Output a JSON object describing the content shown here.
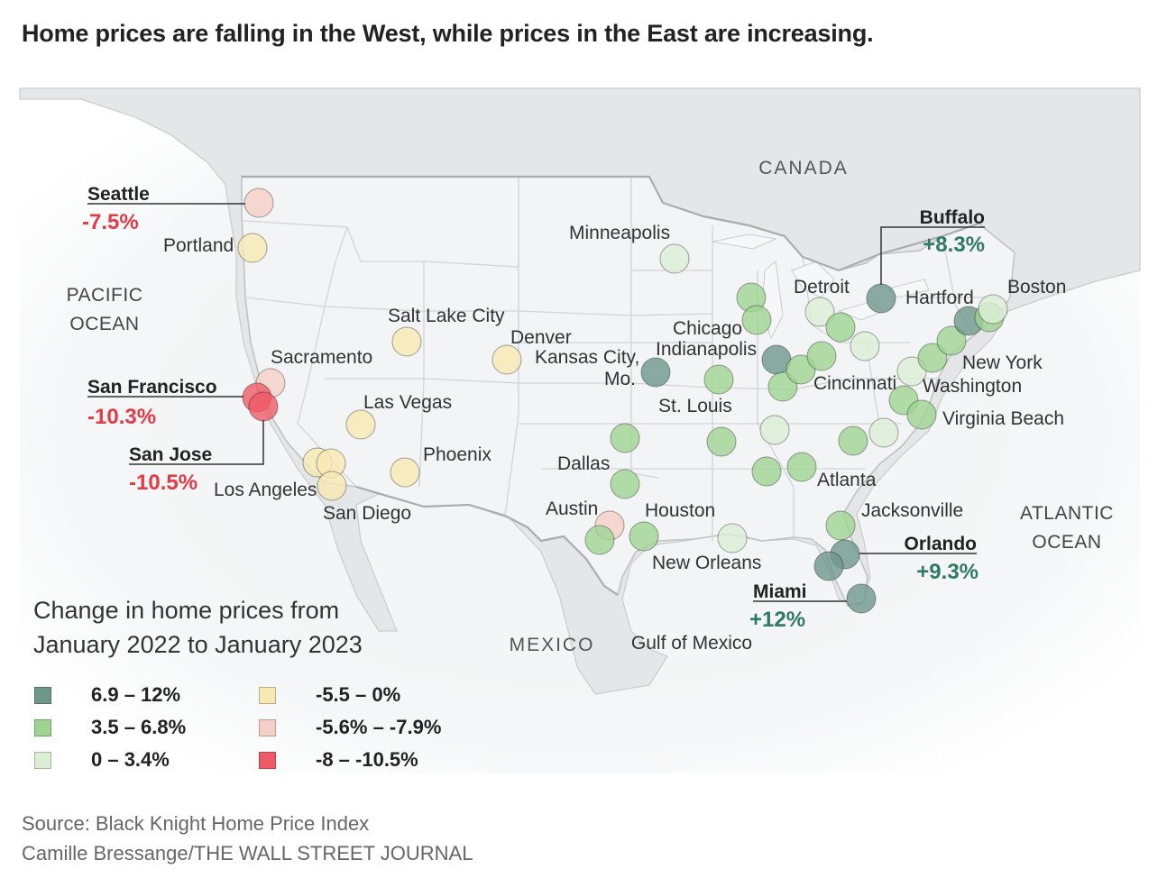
{
  "title": "Home prices are falling in the West, while prices in the East are increasing.",
  "colors": {
    "c69_12": "#6e978c",
    "c35_68": "#9fd392",
    "c0_34": "#dcefd6",
    "cneg55_0": "#f8e9b3",
    "cneg56_79": "#f6cfc6",
    "cneg8_105": "#ee5b67",
    "neg_text": "#e63946",
    "pos_text": "#2f7a63"
  },
  "regions": {
    "canada": "CANADA",
    "pacific": [
      "PACIFIC",
      "OCEAN"
    ],
    "atlantic": [
      "ATLANTIC",
      "OCEAN"
    ],
    "mexico": "MEXICO",
    "gulf": "Gulf of Mexico"
  },
  "labels": {
    "portland": "Portland",
    "sacramento": "Sacramento",
    "los_angeles": "Los Angeles",
    "san_diego": "San Diego",
    "salt_lake_city": "Salt Lake City",
    "las_vegas": "Las Vegas",
    "phoenix": "Phoenix",
    "denver": "Denver",
    "minneapolis": "Minneapolis",
    "kansas_city": [
      "Kansas City,",
      "Mo."
    ],
    "chicago": "Chicago",
    "indianapolis": "Indianapolis",
    "st_louis": "St. Louis",
    "dallas": "Dallas",
    "austin": "Austin",
    "houston": "Houston",
    "new_orleans": "New Orleans",
    "detroit": "Detroit",
    "cincinnati": "Cincinnati",
    "atlanta": "Atlanta",
    "jacksonville": "Jacksonville",
    "hartford": "Hartford",
    "boston": "Boston",
    "new_york": "New York",
    "washington": "Washington",
    "virginia_beach": "Virginia Beach"
  },
  "callouts": {
    "seattle": {
      "name": "Seattle",
      "value": "-7.5%"
    },
    "san_francisco": {
      "name": "San Francisco",
      "value": "-10.3%"
    },
    "san_jose": {
      "name": "San Jose",
      "value": "-10.5%"
    },
    "buffalo": {
      "name": "Buffalo",
      "value": "+8.3%"
    },
    "orlando": {
      "name": "Orlando",
      "value": "+9.3%"
    },
    "miami": {
      "name": "Miami",
      "value": "+12%"
    }
  },
  "legend": {
    "title_lines": [
      "Change in home prices from",
      "January 2022 to January 2023"
    ],
    "items": [
      {
        "label": "6.9 – 12%",
        "color": "#6e978c"
      },
      {
        "label": "3.5 – 6.8%",
        "color": "#9fd392"
      },
      {
        "label": "0 – 3.4%",
        "color": "#dcefd6"
      },
      {
        "label": "-5.5 – 0%",
        "color": "#f8e9b3"
      },
      {
        "label": "-5.6% – -7.9%",
        "color": "#f6cfc6"
      },
      {
        "label": "-8 – -10.5%",
        "color": "#ee5b67"
      }
    ]
  },
  "footer": {
    "source": "Source: Black Knight Home Price Index",
    "credit": "Camille Bressange/THE WALL STREET JOURNAL"
  }
}
